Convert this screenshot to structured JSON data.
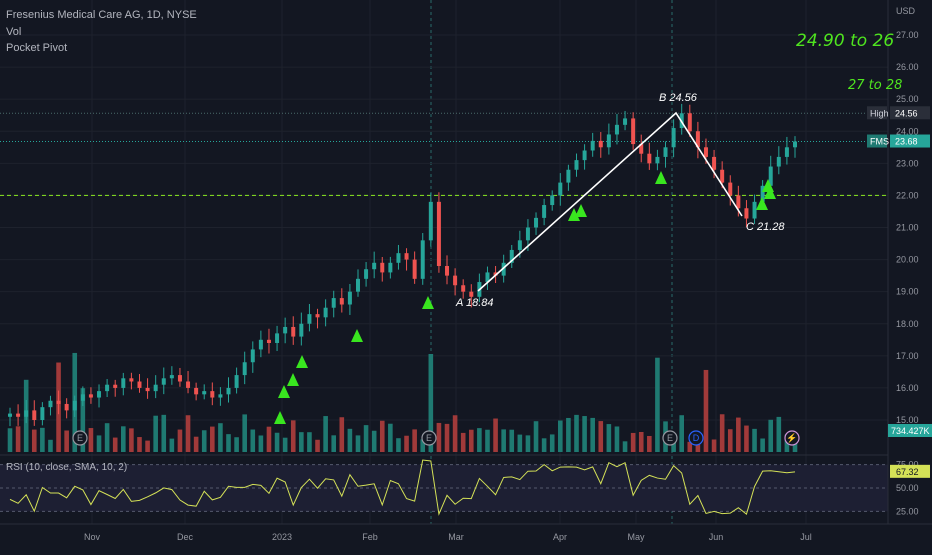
{
  "legend": {
    "title": "Fresenius Medical Care AG, 1D, NYSE",
    "vol": "Vol",
    "pivot": "Pocket Pivot"
  },
  "annotations": {
    "target1": "24.90 to 26",
    "target2": "27 to 28",
    "pointA": "A 18.84",
    "pointB": "B 24.56",
    "pointC": "C 21.28"
  },
  "price_axis": {
    "currency": "USD",
    "ticks": [
      "27.00",
      "26.00",
      "25.00",
      "24.00",
      "23.00",
      "22.00",
      "21.00",
      "20.00",
      "19.00",
      "18.00",
      "17.00",
      "16.00",
      "15.00"
    ],
    "high_label": "High",
    "high_value": "24.56",
    "symbol": "FMS",
    "last_price": "23.68",
    "volume_value": "734.427K"
  },
  "rsi": {
    "label": "RSI (10, close, SMA, 10, 2)",
    "value": "67.32",
    "ticks": [
      "75.00",
      "50.00",
      "25.00"
    ]
  },
  "time_axis": [
    "Nov",
    "Dec",
    "2023",
    "Feb",
    "Mar",
    "Apr",
    "May",
    "Jun",
    "Jul"
  ],
  "colors": {
    "background": "#131722",
    "up": "#26a69a",
    "down": "#ef5350",
    "annotation": "#4fe51f",
    "rsi_line": "#d4e157"
  },
  "chart_data": {
    "type": "candlestick",
    "ylim": [
      14.5,
      27.5
    ],
    "support_level": 22.0,
    "wave_points": [
      {
        "label": "A",
        "value": 18.84
      },
      {
        "label": "B",
        "value": 24.56
      },
      {
        "label": "C",
        "value": 21.28
      }
    ],
    "targets": [
      "24.90 to 26",
      "27 to 28"
    ],
    "closes": [
      15.2,
      15.1,
      15.3,
      15.0,
      15.4,
      15.6,
      15.5,
      15.3,
      15.6,
      15.8,
      15.7,
      15.9,
      16.1,
      16.0,
      16.3,
      16.2,
      16.0,
      15.9,
      16.1,
      16.3,
      16.4,
      16.2,
      16.0,
      15.8,
      15.9,
      15.7,
      15.8,
      16.0,
      16.4,
      16.8,
      17.2,
      17.5,
      17.4,
      17.7,
      17.9,
      17.6,
      18.0,
      18.3,
      18.2,
      18.5,
      18.8,
      18.6,
      19.0,
      19.4,
      19.7,
      19.9,
      19.6,
      19.9,
      20.2,
      20.0,
      19.4,
      20.6,
      21.8,
      19.8,
      19.5,
      19.2,
      19.0,
      18.84,
      19.3,
      19.6,
      19.5,
      19.9,
      20.3,
      20.6,
      21.0,
      21.3,
      21.7,
      22.0,
      22.4,
      22.8,
      23.1,
      23.4,
      23.7,
      23.5,
      23.9,
      24.2,
      24.4,
      23.6,
      23.3,
      23.0,
      23.2,
      23.5,
      24.1,
      24.56,
      24.0,
      23.5,
      23.2,
      22.8,
      22.4,
      22.0,
      21.6,
      21.28,
      21.8,
      22.3,
      22.9,
      23.2,
      23.5,
      23.68
    ],
    "volume_last": "734.427K",
    "rsi_last": 67.32
  }
}
